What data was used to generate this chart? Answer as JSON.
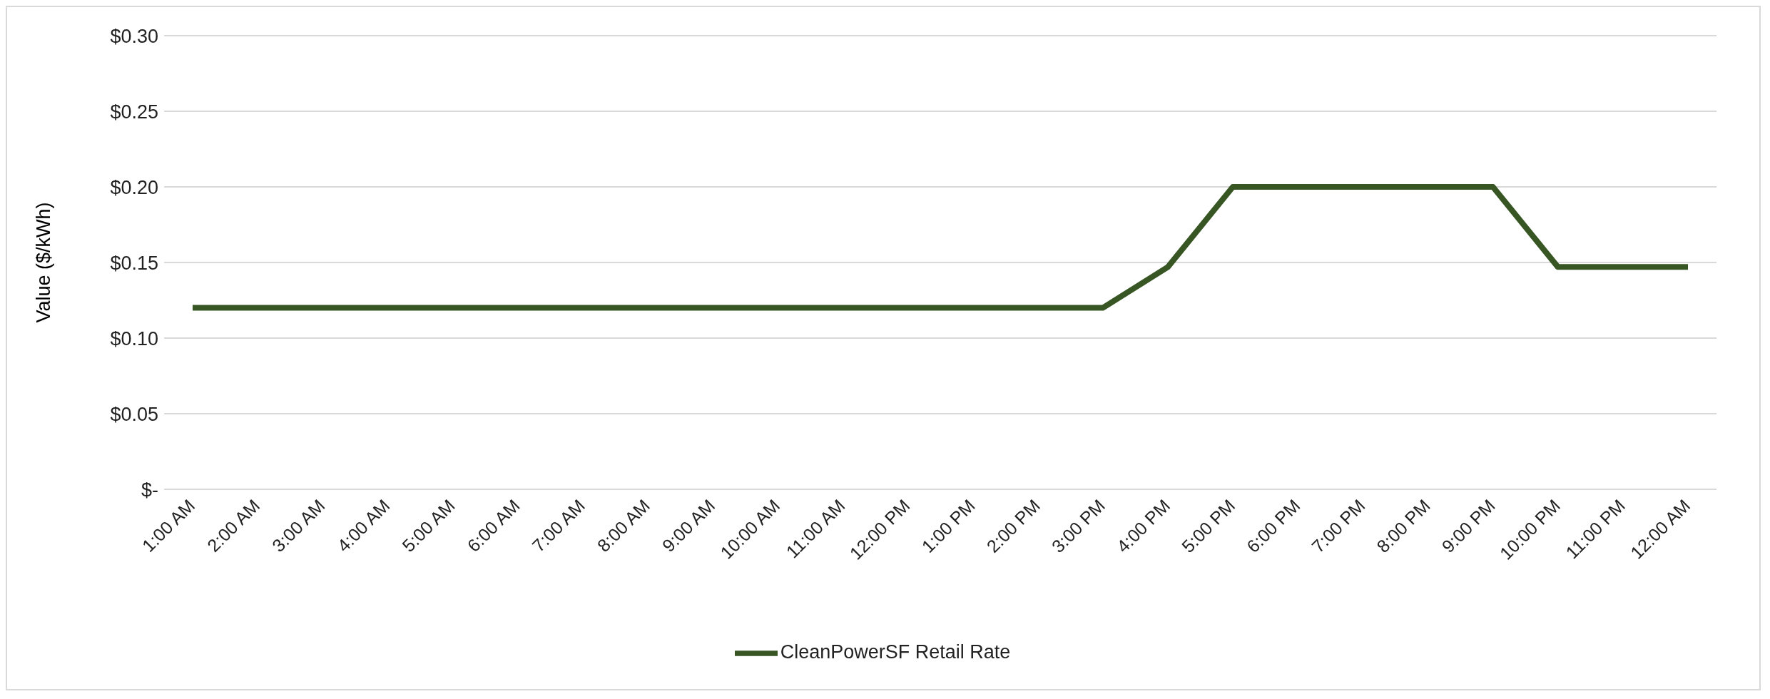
{
  "chart_data": {
    "type": "line",
    "ylabel": "Value ($/kWh)",
    "categories": [
      "1:00 AM",
      "2:00 AM",
      "3:00 AM",
      "4:00 AM",
      "5:00 AM",
      "6:00 AM",
      "7:00 AM",
      "8:00 AM",
      "9:00 AM",
      "10:00 AM",
      "11:00 AM",
      "12:00 PM",
      "1:00 PM",
      "2:00 PM",
      "3:00 PM",
      "4:00 PM",
      "5:00 PM",
      "6:00 PM",
      "7:00 PM",
      "8:00 PM",
      "9:00 PM",
      "10:00 PM",
      "11:00 PM",
      "12:00 AM"
    ],
    "series": [
      {
        "name": "CleanPowerSF Retail Rate",
        "color": "#375623",
        "values": [
          0.12,
          0.12,
          0.12,
          0.12,
          0.12,
          0.12,
          0.12,
          0.12,
          0.12,
          0.12,
          0.12,
          0.12,
          0.12,
          0.12,
          0.12,
          0.147,
          0.2,
          0.2,
          0.2,
          0.2,
          0.2,
          0.147,
          0.147,
          0.147
        ]
      }
    ],
    "ylim": [
      0,
      0.3
    ],
    "yticks": [
      {
        "value": 0,
        "label": "$-"
      },
      {
        "value": 0.05,
        "label": "$0.05"
      },
      {
        "value": 0.1,
        "label": "$0.10"
      },
      {
        "value": 0.15,
        "label": "$0.15"
      },
      {
        "value": 0.2,
        "label": "$0.20"
      },
      {
        "value": 0.25,
        "label": "$0.25"
      },
      {
        "value": 0.3,
        "label": "$0.30"
      }
    ],
    "grid": "y",
    "legend": "bottom",
    "marker": "none",
    "line_style": "solid"
  }
}
